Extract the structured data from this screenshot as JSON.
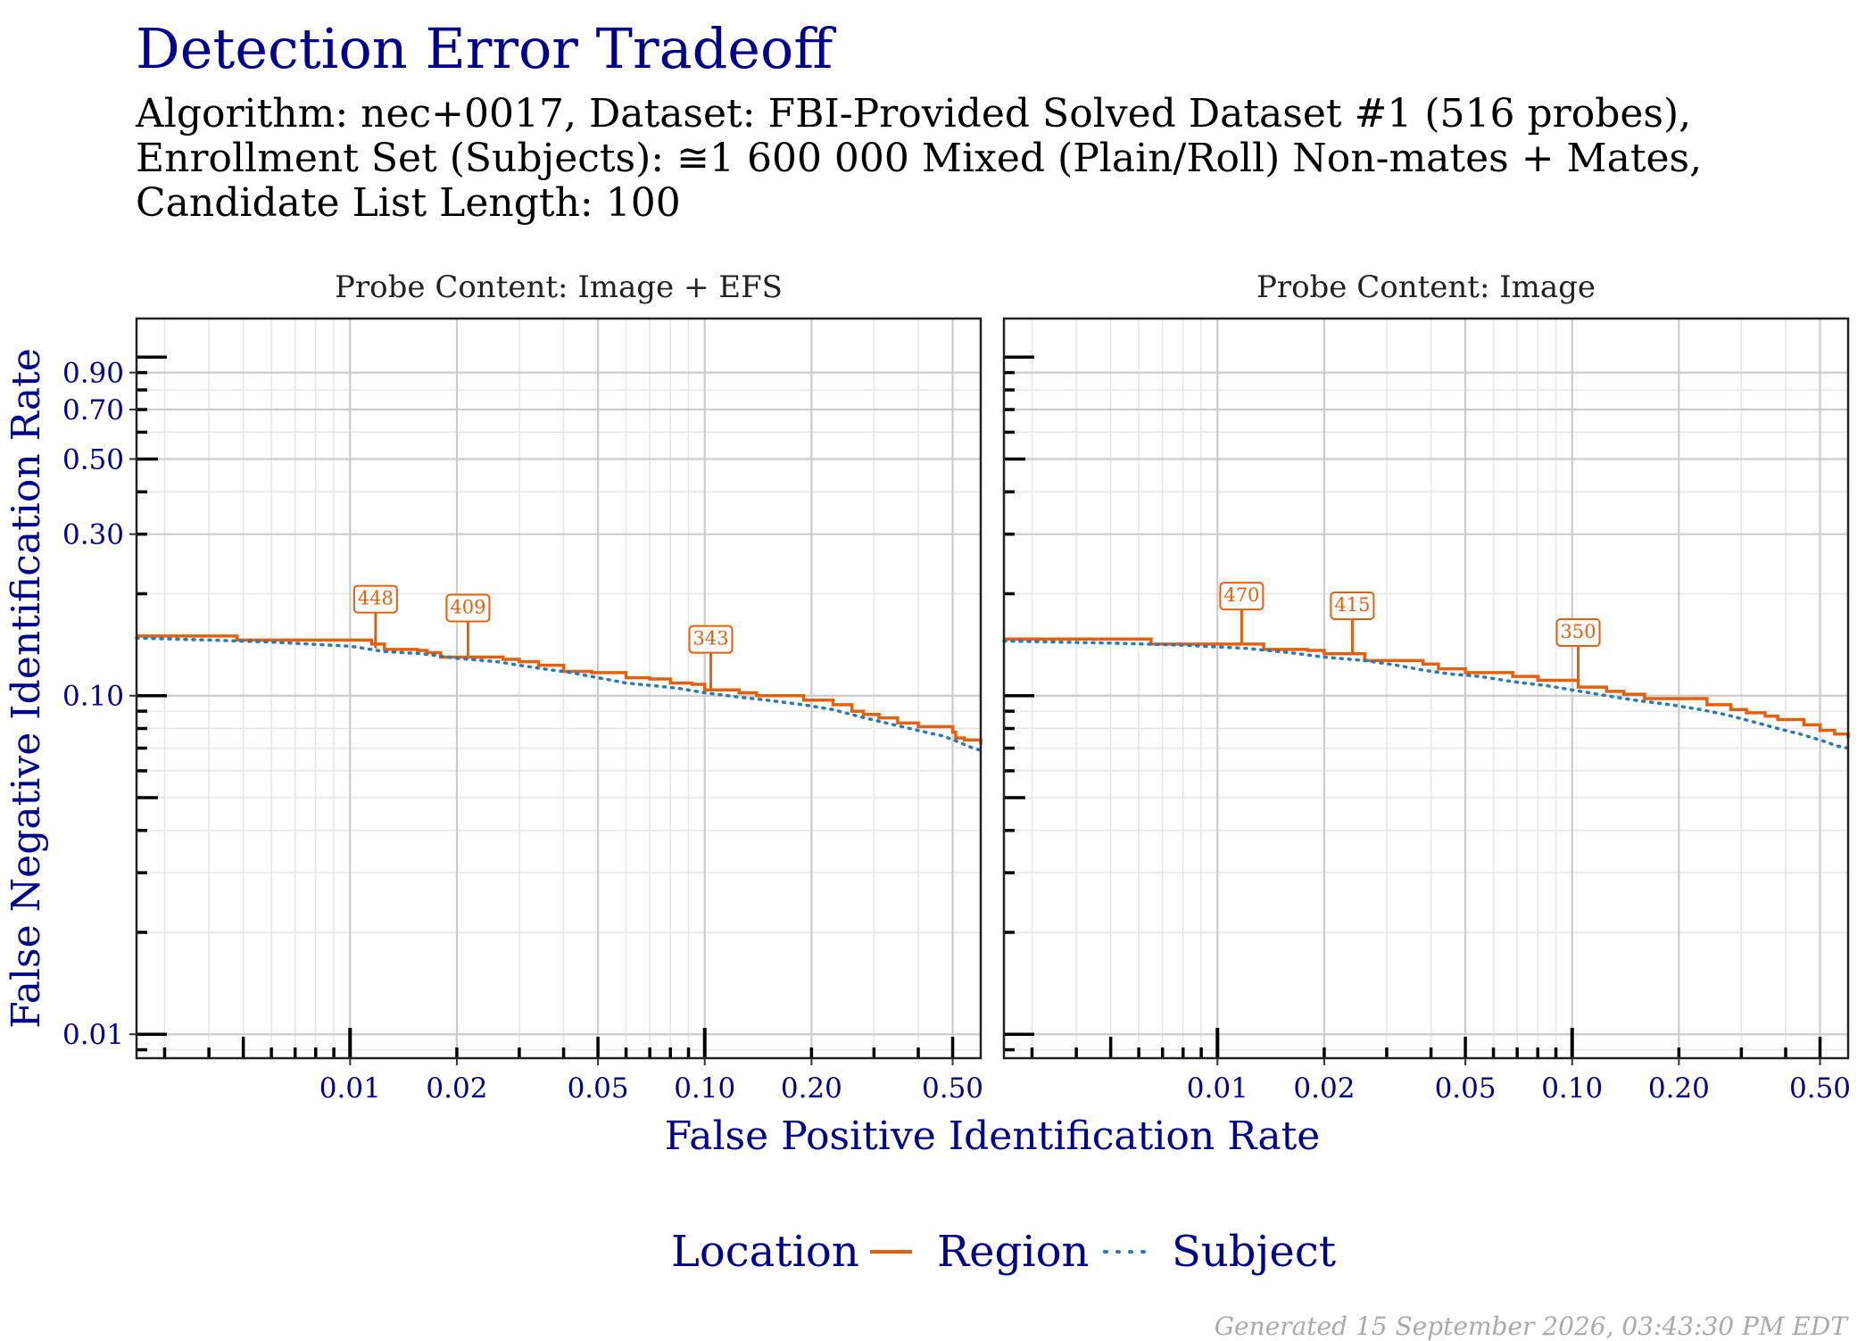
{
  "title": "Detection Error Tradeoff",
  "subtitle_lines": [
    "Algorithm: nec+0017, Dataset: FBI-Provided Solved Dataset #1 (516 probes),",
    "Enrollment Set (Subjects): ≅1 600 000 Mixed (Plain/Roll) Non-mates + Mates,",
    "Candidate List Length: 100"
  ],
  "generated": "Generated 15 September 2026, 03:43:30 PM EDT",
  "colors": {
    "title": "#00008b",
    "region": "#e3600e",
    "subject": "#2a7ab5",
    "grid_major": "#cccccc",
    "grid_minor": "#e6e6e6"
  },
  "chart_data": {
    "type": "line",
    "xlabel": "False Positive Identification Rate",
    "ylabel": "False Negative Identification Rate",
    "x_scale": "log",
    "y_scale": "log",
    "xlim": [
      0.0025,
      0.6
    ],
    "ylim": [
      0.0085,
      1.3
    ],
    "x_ticks": [
      0.01,
      0.02,
      0.05,
      0.1,
      0.2,
      0.5
    ],
    "x_tick_labels": [
      "0.01",
      "0.02",
      "0.05",
      "0.10",
      "0.20",
      "0.50"
    ],
    "y_ticks": [
      0.01,
      0.1,
      0.3,
      0.5,
      0.7,
      0.9
    ],
    "y_tick_labels": [
      "0.01",
      "0.10",
      "0.30",
      "0.50",
      "0.70",
      "0.90"
    ],
    "grid": true,
    "legend": {
      "title": "Location",
      "position": "bottom",
      "entries": [
        {
          "name": "Region",
          "style": "solid"
        },
        {
          "name": "Subject",
          "style": "dotted"
        }
      ]
    },
    "panels": [
      {
        "strip": "Probe Content: Image + EFS",
        "series": [
          {
            "name": "Region",
            "x": [
              0.0025,
              0.0043,
              0.0048,
              0.0115,
              0.0125,
              0.0155,
              0.0165,
              0.018,
              0.0215,
              0.027,
              0.03,
              0.034,
              0.04,
              0.048,
              0.06,
              0.07,
              0.08,
              0.092,
              0.1,
              0.104,
              0.125,
              0.14,
              0.19,
              0.23,
              0.26,
              0.28,
              0.31,
              0.35,
              0.4,
              0.44,
              0.5,
              0.51,
              0.54,
              0.6
            ],
            "y": [
              0.15,
              0.15,
              0.146,
              0.142,
              0.137,
              0.136,
              0.134,
              0.13,
              0.13,
              0.128,
              0.126,
              0.123,
              0.118,
              0.117,
              0.113,
              0.112,
              0.109,
              0.108,
              0.104,
              0.104,
              0.102,
              0.1,
              0.097,
              0.094,
              0.09,
              0.088,
              0.086,
              0.083,
              0.081,
              0.081,
              0.078,
              0.075,
              0.074,
              0.072
            ]
          },
          {
            "name": "Subject",
            "x": [
              0.0025,
              0.004,
              0.006,
              0.01,
              0.0125,
              0.016,
              0.02,
              0.026,
              0.03,
              0.035,
              0.042,
              0.05,
              0.06,
              0.072,
              0.085,
              0.1,
              0.125,
              0.15,
              0.19,
              0.23,
              0.27,
              0.31,
              0.36,
              0.42,
              0.47,
              0.52,
              0.57,
              0.6
            ],
            "y": [
              0.148,
              0.146,
              0.144,
              0.14,
              0.135,
              0.133,
              0.129,
              0.126,
              0.123,
              0.12,
              0.117,
              0.113,
              0.109,
              0.107,
              0.105,
              0.102,
              0.099,
              0.097,
              0.094,
              0.091,
              0.087,
              0.084,
              0.081,
              0.078,
              0.076,
              0.073,
              0.07,
              0.069
            ]
          }
        ],
        "annotations": [
          {
            "label": "448",
            "x": 0.0118,
            "y": 0.138
          },
          {
            "label": "409",
            "x": 0.0215,
            "y": 0.13
          },
          {
            "label": "343",
            "x": 0.104,
            "y": 0.105
          }
        ]
      },
      {
        "strip": "Probe Content: Image",
        "series": [
          {
            "name": "Region",
            "x": [
              0.0025,
              0.006,
              0.0065,
              0.012,
              0.0135,
              0.018,
              0.02,
              0.024,
              0.026,
              0.035,
              0.038,
              0.042,
              0.05,
              0.062,
              0.068,
              0.08,
              0.1,
              0.104,
              0.125,
              0.14,
              0.16,
              0.21,
              0.24,
              0.28,
              0.31,
              0.35,
              0.38,
              0.45,
              0.5,
              0.55,
              0.6
            ],
            "y": [
              0.147,
              0.147,
              0.142,
              0.142,
              0.137,
              0.136,
              0.133,
              0.133,
              0.127,
              0.127,
              0.124,
              0.12,
              0.117,
              0.117,
              0.114,
              0.111,
              0.111,
              0.106,
              0.103,
              0.101,
              0.098,
              0.098,
              0.094,
              0.091,
              0.089,
              0.087,
              0.085,
              0.082,
              0.079,
              0.077,
              0.075
            ]
          },
          {
            "name": "Subject",
            "x": [
              0.0025,
              0.005,
              0.008,
              0.012,
              0.016,
              0.02,
              0.026,
              0.032,
              0.038,
              0.045,
              0.055,
              0.068,
              0.085,
              0.1,
              0.125,
              0.15,
              0.19,
              0.23,
              0.27,
              0.32,
              0.38,
              0.44,
              0.5,
              0.56,
              0.6
            ],
            "y": [
              0.145,
              0.143,
              0.141,
              0.138,
              0.134,
              0.13,
              0.127,
              0.123,
              0.119,
              0.116,
              0.114,
              0.11,
              0.107,
              0.104,
              0.1,
              0.097,
              0.094,
              0.091,
              0.088,
              0.084,
              0.08,
              0.077,
              0.074,
              0.071,
              0.07
            ]
          }
        ],
        "annotations": [
          {
            "label": "470",
            "x": 0.0117,
            "y": 0.141
          },
          {
            "label": "415",
            "x": 0.024,
            "y": 0.132
          },
          {
            "label": "350",
            "x": 0.104,
            "y": 0.11
          }
        ]
      }
    ]
  }
}
